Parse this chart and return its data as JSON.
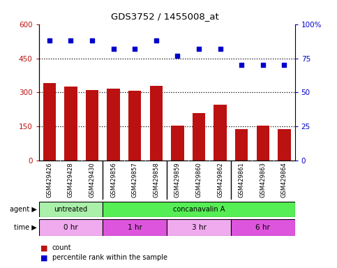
{
  "title": "GDS3752 / 1455008_at",
  "samples": [
    "GSM429426",
    "GSM429428",
    "GSM429430",
    "GSM429856",
    "GSM429857",
    "GSM429858",
    "GSM429859",
    "GSM429860",
    "GSM429862",
    "GSM429861",
    "GSM429863",
    "GSM429864"
  ],
  "counts": [
    340,
    325,
    312,
    316,
    307,
    330,
    155,
    210,
    245,
    140,
    155,
    140
  ],
  "percentiles": [
    88,
    88,
    88,
    82,
    82,
    88,
    77,
    82,
    82,
    70,
    70,
    70
  ],
  "bar_color": "#bb1111",
  "dot_color": "#0000cc",
  "ylim_left": [
    0,
    600
  ],
  "ylim_right": [
    0,
    100
  ],
  "yticks_left": [
    0,
    150,
    300,
    450,
    600
  ],
  "yticks_right": [
    0,
    25,
    50,
    75,
    100
  ],
  "ytick_labels_right": [
    "0",
    "25",
    "50",
    "75",
    "100%"
  ],
  "grid_values": [
    150,
    300,
    450
  ],
  "agent_row": [
    {
      "label": "untreated",
      "start": 0,
      "end": 3,
      "color": "#aaf0aa"
    },
    {
      "label": "concanavalin A",
      "start": 3,
      "end": 12,
      "color": "#55ee55"
    }
  ],
  "time_row": [
    {
      "label": "0 hr",
      "start": 0,
      "end": 3,
      "color": "#f0aaee"
    },
    {
      "label": "1 hr",
      "start": 3,
      "end": 6,
      "color": "#dd55dd"
    },
    {
      "label": "3 hr",
      "start": 6,
      "end": 9,
      "color": "#f0aaee"
    },
    {
      "label": "6 hr",
      "start": 9,
      "end": 12,
      "color": "#dd55dd"
    }
  ],
  "legend_count_color": "#bb1111",
  "legend_dot_color": "#0000cc",
  "bg_color": "#ffffff",
  "tick_area_color": "#cccccc",
  "fig_width": 4.83,
  "fig_height": 3.84,
  "dpi": 100
}
